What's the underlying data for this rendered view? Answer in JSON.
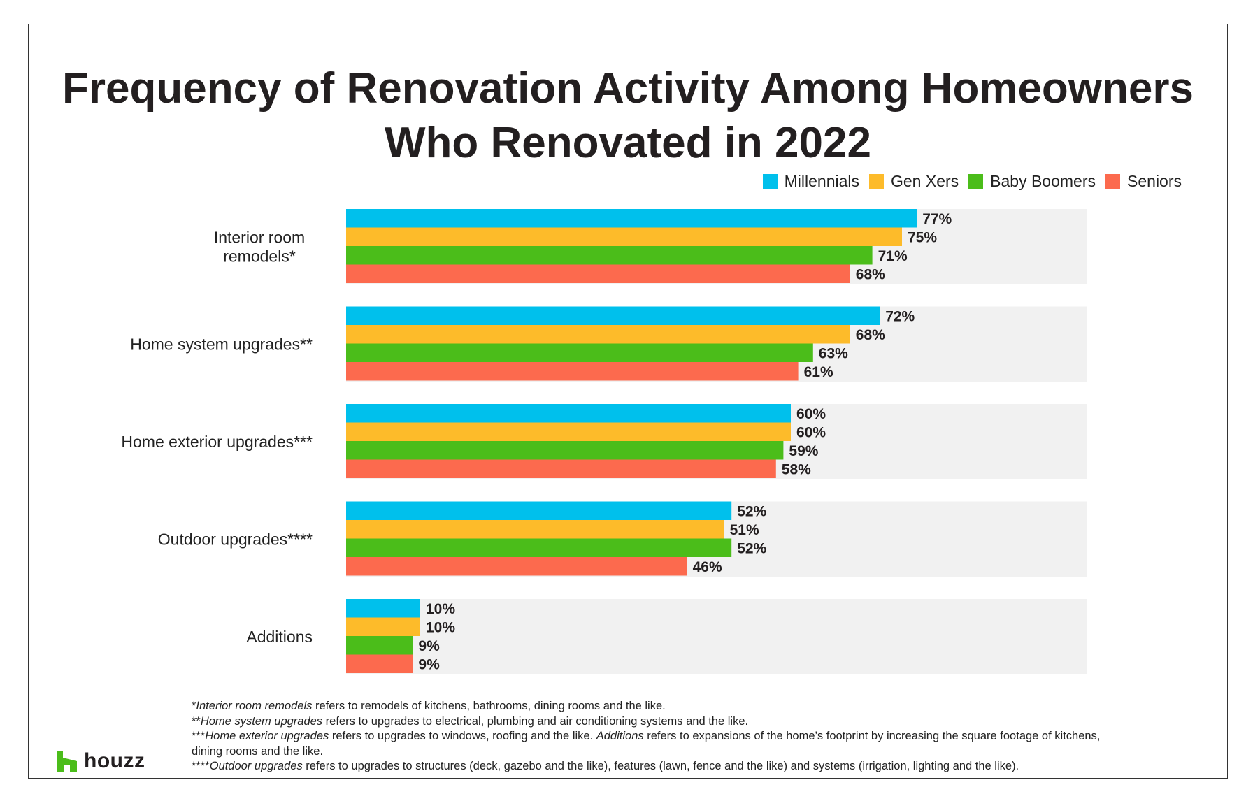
{
  "chart_data": {
    "type": "bar",
    "orientation": "horizontal",
    "title": "Frequency of Renovation Activity Among Homeowners Who Renovated in 2022",
    "title_lines": [
      "Frequency of Renovation Activity Among Homeowners",
      "Who Renovated in 2022"
    ],
    "categories": [
      [
        "Interior room",
        "remodels*"
      ],
      [
        "Home system upgrades**"
      ],
      [
        "Home exterior upgrades***"
      ],
      [
        "Outdoor upgrades****"
      ],
      [
        "Additions"
      ]
    ],
    "series": [
      {
        "name": "Millennials",
        "color": "#00c0ec",
        "values": [
          77,
          72,
          60,
          52,
          10
        ]
      },
      {
        "name": "Gen Xers",
        "color": "#fdbb2a",
        "values": [
          75,
          68,
          60,
          51,
          10
        ]
      },
      {
        "name": "Baby Boomers",
        "color": "#4bbd1a",
        "values": [
          71,
          63,
          59,
          52,
          9
        ]
      },
      {
        "name": "Seniors",
        "color": "#fc6a4e",
        "values": [
          68,
          61,
          58,
          46,
          9
        ]
      }
    ],
    "value_suffix": "%",
    "xlim": [
      0,
      100
    ],
    "legend_position": "top-right",
    "grid": false,
    "background_band_color": "#f1f1f1"
  },
  "footnotes": [
    {
      "marker": "*",
      "term": "Interior room remodels",
      "text": " refers to remodels of kitchens, bathrooms, dining rooms and the like."
    },
    {
      "marker": "**",
      "term": "Home system upgrades",
      "text": " refers to upgrades to electrical, plumbing and air conditioning systems and the like."
    },
    {
      "marker": "***",
      "term": "Home exterior upgrades",
      "text": " refers to upgrades to windows, roofing and the like. ",
      "term2": "Additions",
      "text2": " refers to expansions of the home’s footprint by increasing the square footage of kitchens, dining rooms and the like."
    },
    {
      "marker": "****",
      "term": "Outdoor upgrades",
      "text": " refers to upgrades to structures (deck, gazebo and the like), features (lawn, fence and the like) and systems (irrigation, lighting and the like)."
    }
  ],
  "logo": {
    "text": "houzz",
    "color": "#4bbd1a",
    "icon": "houzz-logo-icon"
  }
}
